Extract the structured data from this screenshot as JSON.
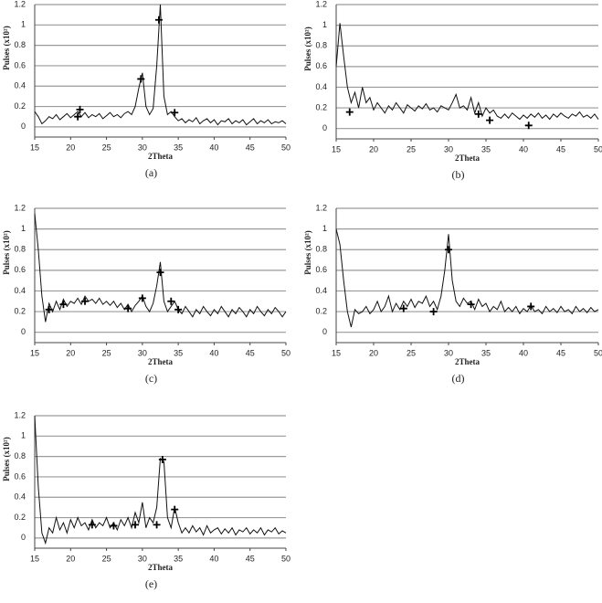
{
  "chart_data": [
    {
      "type": "line",
      "caption": "(a)",
      "ylabel": "Pulses (x10²)",
      "xlabel": "2Theta",
      "color": "#111111",
      "grid": true,
      "xlim": [
        15,
        50
      ],
      "xticks": [
        15,
        20,
        25,
        30,
        35,
        40,
        45,
        50
      ],
      "ylim": [
        -0.1,
        1.2
      ],
      "yticks": [
        0,
        0.2,
        0.4,
        0.6,
        0.8,
        1,
        1.2
      ],
      "x": [
        15,
        15.5,
        16,
        16.5,
        17,
        17.5,
        18,
        18.5,
        19,
        19.5,
        20,
        20.5,
        21,
        21.5,
        22,
        22.5,
        23,
        23.5,
        24,
        24.5,
        25,
        25.5,
        26,
        26.5,
        27,
        27.5,
        28,
        28.5,
        29,
        29.5,
        30,
        30.5,
        31,
        31.5,
        32,
        32.5,
        33,
        33.5,
        34,
        34.5,
        35,
        35.5,
        36,
        36.5,
        37,
        37.5,
        38,
        38.5,
        39,
        39.5,
        40,
        40.5,
        41,
        41.5,
        42,
        42.5,
        43,
        43.5,
        44,
        44.5,
        45,
        45.5,
        46,
        46.5,
        47,
        47.5,
        48,
        48.5,
        49,
        49.5,
        50
      ],
      "values": [
        0.15,
        0.1,
        0.03,
        0.06,
        0.1,
        0.08,
        0.12,
        0.07,
        0.1,
        0.13,
        0.09,
        0.12,
        0.15,
        0.1,
        0.14,
        0.09,
        0.12,
        0.1,
        0.13,
        0.08,
        0.11,
        0.14,
        0.1,
        0.12,
        0.09,
        0.13,
        0.15,
        0.12,
        0.2,
        0.38,
        0.53,
        0.2,
        0.12,
        0.18,
        0.6,
        1.2,
        0.3,
        0.12,
        0.15,
        0.1,
        0.06,
        0.08,
        0.04,
        0.07,
        0.05,
        0.09,
        0.03,
        0.06,
        0.08,
        0.04,
        0.07,
        0.02,
        0.06,
        0.05,
        0.08,
        0.03,
        0.06,
        0.04,
        0.07,
        0.02,
        0.05,
        0.08,
        0.03,
        0.06,
        0.04,
        0.07,
        0.03,
        0.05,
        0.04,
        0.06,
        0.03
      ],
      "peak_markers": {
        "x": [
          21,
          21.3,
          29.8,
          32.3,
          34.5
        ],
        "values": [
          0.1,
          0.17,
          0.47,
          1.05,
          0.14
        ]
      }
    },
    {
      "type": "line",
      "caption": "(b)",
      "ylabel": "Pulses (x10²)",
      "xlabel": "2Theta",
      "color": "#111111",
      "grid": true,
      "xlim": [
        15,
        50
      ],
      "xticks": [
        15,
        20,
        25,
        30,
        35,
        40,
        45,
        50
      ],
      "ylim": [
        -0.1,
        1.2
      ],
      "yticks": [
        0,
        0.2,
        0.4,
        0.6,
        0.8,
        1,
        1.2
      ],
      "x": [
        15,
        15.5,
        16,
        16.5,
        17,
        17.5,
        18,
        18.5,
        19,
        19.5,
        20,
        20.5,
        21,
        21.5,
        22,
        22.5,
        23,
        23.5,
        24,
        24.5,
        25,
        25.5,
        26,
        26.5,
        27,
        27.5,
        28,
        28.5,
        29,
        29.5,
        30,
        30.5,
        31,
        31.5,
        32,
        32.5,
        33,
        33.5,
        34,
        34.5,
        35,
        35.5,
        36,
        36.5,
        37,
        37.5,
        38,
        38.5,
        39,
        39.5,
        40,
        40.5,
        41,
        41.5,
        42,
        42.5,
        43,
        43.5,
        44,
        44.5,
        45,
        45.5,
        46,
        46.5,
        47,
        47.5,
        48,
        48.5,
        49,
        49.5,
        50
      ],
      "values": [
        0.6,
        1.02,
        0.7,
        0.4,
        0.25,
        0.35,
        0.2,
        0.4,
        0.25,
        0.3,
        0.18,
        0.25,
        0.2,
        0.15,
        0.22,
        0.18,
        0.25,
        0.2,
        0.15,
        0.23,
        0.2,
        0.17,
        0.22,
        0.19,
        0.24,
        0.18,
        0.2,
        0.16,
        0.22,
        0.2,
        0.18,
        0.25,
        0.33,
        0.2,
        0.22,
        0.18,
        0.3,
        0.15,
        0.25,
        0.12,
        0.2,
        0.15,
        0.18,
        0.12,
        0.1,
        0.14,
        0.1,
        0.15,
        0.12,
        0.09,
        0.13,
        0.1,
        0.14,
        0.11,
        0.15,
        0.1,
        0.13,
        0.09,
        0.14,
        0.11,
        0.15,
        0.12,
        0.1,
        0.14,
        0.12,
        0.16,
        0.11,
        0.13,
        0.1,
        0.14,
        0.09
      ],
      "peak_markers": {
        "x": [
          16.8,
          34,
          35.5,
          40.7
        ],
        "values": [
          0.16,
          0.14,
          0.08,
          0.03
        ]
      }
    },
    {
      "type": "line",
      "caption": "(c)",
      "ylabel": "Pulses (x10²)",
      "xlabel": "2Theta",
      "color": "#111111",
      "grid": true,
      "xlim": [
        15,
        50
      ],
      "xticks": [
        15,
        20,
        25,
        30,
        35,
        40,
        45,
        50
      ],
      "ylim": [
        -0.1,
        1.2
      ],
      "yticks": [
        0,
        0.2,
        0.4,
        0.6,
        0.8,
        1,
        1.2
      ],
      "x": [
        15,
        15.5,
        16,
        16.5,
        17,
        17.5,
        18,
        18.5,
        19,
        19.5,
        20,
        20.5,
        21,
        21.5,
        22,
        22.5,
        23,
        23.5,
        24,
        24.5,
        25,
        25.5,
        26,
        26.5,
        27,
        27.5,
        28,
        28.5,
        29,
        29.5,
        30,
        30.5,
        31,
        31.5,
        32,
        32.5,
        33,
        33.5,
        34,
        34.5,
        35,
        35.5,
        36,
        36.5,
        37,
        37.5,
        38,
        38.5,
        39,
        39.5,
        40,
        40.5,
        41,
        41.5,
        42,
        42.5,
        43,
        43.5,
        44,
        44.5,
        45,
        45.5,
        46,
        46.5,
        47,
        47.5,
        48,
        48.5,
        49,
        49.5,
        50
      ],
      "values": [
        1.15,
        0.8,
        0.35,
        0.1,
        0.28,
        0.2,
        0.3,
        0.22,
        0.32,
        0.25,
        0.3,
        0.28,
        0.33,
        0.27,
        0.35,
        0.3,
        0.32,
        0.28,
        0.33,
        0.27,
        0.3,
        0.26,
        0.3,
        0.24,
        0.28,
        0.22,
        0.27,
        0.2,
        0.26,
        0.3,
        0.35,
        0.25,
        0.2,
        0.28,
        0.45,
        0.68,
        0.3,
        0.2,
        0.25,
        0.3,
        0.22,
        0.18,
        0.25,
        0.2,
        0.15,
        0.22,
        0.18,
        0.25,
        0.2,
        0.16,
        0.22,
        0.18,
        0.25,
        0.2,
        0.15,
        0.22,
        0.18,
        0.24,
        0.2,
        0.15,
        0.22,
        0.18,
        0.25,
        0.2,
        0.16,
        0.22,
        0.18,
        0.24,
        0.2,
        0.15,
        0.2
      ],
      "peak_markers": {
        "x": [
          17,
          19,
          22,
          28,
          30,
          32.5,
          34,
          35
        ],
        "values": [
          0.22,
          0.27,
          0.3,
          0.23,
          0.33,
          0.58,
          0.3,
          0.22
        ]
      }
    },
    {
      "type": "line",
      "caption": "(d)",
      "ylabel": "Pulses (x10²)",
      "xlabel": "2Theta",
      "color": "#111111",
      "grid": true,
      "xlim": [
        15,
        50
      ],
      "xticks": [
        15,
        20,
        25,
        30,
        35,
        40,
        45,
        50
      ],
      "ylim": [
        -0.1,
        1.2
      ],
      "yticks": [
        0,
        0.2,
        0.4,
        0.6,
        0.8,
        1,
        1.2
      ],
      "x": [
        15,
        15.5,
        16,
        16.5,
        17,
        17.5,
        18,
        18.5,
        19,
        19.5,
        20,
        20.5,
        21,
        21.5,
        22,
        22.5,
        23,
        23.5,
        24,
        24.5,
        25,
        25.5,
        26,
        26.5,
        27,
        27.5,
        28,
        28.5,
        29,
        29.5,
        30,
        30.5,
        31,
        31.5,
        32,
        32.5,
        33,
        33.5,
        34,
        34.5,
        35,
        35.5,
        36,
        36.5,
        37,
        37.5,
        38,
        38.5,
        39,
        39.5,
        40,
        40.5,
        41,
        41.5,
        42,
        42.5,
        43,
        43.5,
        44,
        44.5,
        45,
        45.5,
        46,
        46.5,
        47,
        47.5,
        48,
        48.5,
        49,
        49.5,
        50
      ],
      "values": [
        1.0,
        0.85,
        0.5,
        0.2,
        0.05,
        0.22,
        0.18,
        0.2,
        0.25,
        0.18,
        0.22,
        0.3,
        0.2,
        0.25,
        0.35,
        0.2,
        0.28,
        0.22,
        0.3,
        0.25,
        0.32,
        0.24,
        0.3,
        0.28,
        0.35,
        0.25,
        0.3,
        0.22,
        0.35,
        0.6,
        0.95,
        0.5,
        0.3,
        0.25,
        0.33,
        0.28,
        0.3,
        0.22,
        0.32,
        0.25,
        0.28,
        0.2,
        0.25,
        0.22,
        0.3,
        0.2,
        0.24,
        0.2,
        0.25,
        0.18,
        0.23,
        0.2,
        0.26,
        0.2,
        0.22,
        0.18,
        0.25,
        0.2,
        0.23,
        0.19,
        0.25,
        0.2,
        0.22,
        0.18,
        0.25,
        0.2,
        0.23,
        0.19,
        0.24,
        0.2,
        0.22
      ],
      "peak_markers": {
        "x": [
          24,
          28,
          30,
          33,
          41
        ],
        "values": [
          0.23,
          0.2,
          0.8,
          0.27,
          0.25
        ]
      }
    },
    {
      "type": "line",
      "caption": "(e)",
      "ylabel": "Pulses (x10²)",
      "xlabel": "2Theta",
      "color": "#111111",
      "grid": true,
      "xlim": [
        15,
        50
      ],
      "xticks": [
        15,
        20,
        25,
        30,
        35,
        40,
        45,
        50
      ],
      "ylim": [
        -0.1,
        1.2
      ],
      "yticks": [
        0,
        0.2,
        0.4,
        0.6,
        0.8,
        1,
        1.2
      ],
      "x": [
        15,
        15.5,
        16,
        16.5,
        17,
        17.5,
        18,
        18.5,
        19,
        19.5,
        20,
        20.5,
        21,
        21.5,
        22,
        22.5,
        23,
        23.5,
        24,
        24.5,
        25,
        25.5,
        26,
        26.5,
        27,
        27.5,
        28,
        28.5,
        29,
        29.5,
        30,
        30.5,
        31,
        31.5,
        32,
        32.5,
        33,
        33.5,
        34,
        34.5,
        35,
        35.5,
        36,
        36.5,
        37,
        37.5,
        38,
        38.5,
        39,
        39.5,
        40,
        40.5,
        41,
        41.5,
        42,
        42.5,
        43,
        43.5,
        44,
        44.5,
        45,
        45.5,
        46,
        46.5,
        47,
        47.5,
        48,
        48.5,
        49,
        49.5,
        50
      ],
      "values": [
        1.2,
        0.5,
        0.05,
        -0.05,
        0.1,
        0.05,
        0.2,
        0.08,
        0.15,
        0.05,
        0.18,
        0.1,
        0.2,
        0.12,
        0.15,
        0.08,
        0.18,
        0.1,
        0.15,
        0.12,
        0.2,
        0.1,
        0.15,
        0.08,
        0.18,
        0.12,
        0.2,
        0.1,
        0.25,
        0.15,
        0.35,
        0.1,
        0.2,
        0.15,
        0.3,
        0.78,
        0.75,
        0.2,
        0.1,
        0.3,
        0.15,
        0.05,
        0.1,
        0.05,
        0.12,
        0.06,
        0.1,
        0.03,
        0.12,
        0.05,
        0.08,
        0.1,
        0.04,
        0.09,
        0.05,
        0.1,
        0.03,
        0.08,
        0.06,
        0.1,
        0.04,
        0.08,
        0.05,
        0.1,
        0.03,
        0.08,
        0.06,
        0.1,
        0.04,
        0.07,
        0.05
      ],
      "peak_markers": {
        "x": [
          23,
          26,
          29,
          32,
          32.8,
          34.5
        ],
        "values": [
          0.13,
          0.12,
          0.13,
          0.13,
          0.77,
          0.28
        ]
      }
    }
  ]
}
